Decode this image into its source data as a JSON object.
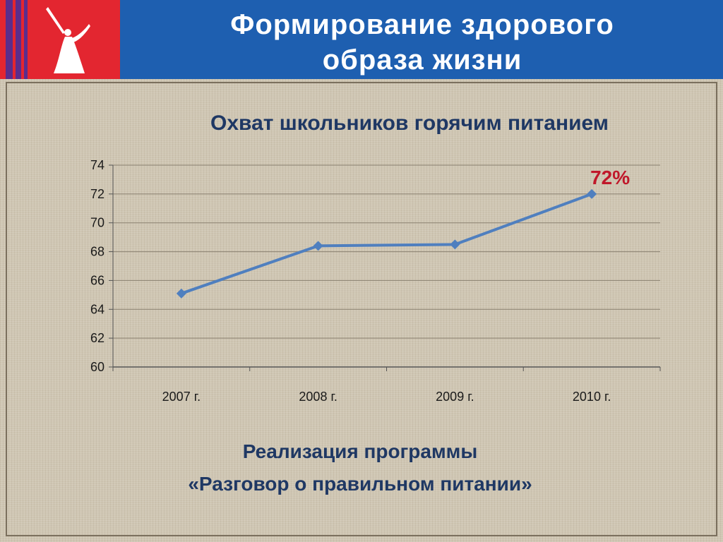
{
  "header": {
    "title_line1": "Формирование здорового",
    "title_line2": "образа жизни"
  },
  "colors": {
    "header_blue": "#1e5fb0",
    "logo_red": "#e32630",
    "line_blue": "#4f7fbf",
    "highlight_red": "#c0182a",
    "title_navy": "#1f3864"
  },
  "chart_data": {
    "type": "line",
    "title": "Охват школьников горячим питанием",
    "categories": [
      "2007 г.",
      "2008 г.",
      "2009 г.",
      "2010 г."
    ],
    "series": [
      {
        "values": [
          65.1,
          68.4,
          68.5,
          72
        ]
      }
    ],
    "ylim": [
      60,
      74
    ],
    "yticks": [
      74,
      72,
      70,
      68,
      66,
      64,
      62,
      60
    ],
    "grid": true,
    "annotation": {
      "category": "2010 г.",
      "text": "72%"
    }
  },
  "footer": {
    "line1": "Реализация программы",
    "line2": "«Разговор о правильном питании»"
  }
}
